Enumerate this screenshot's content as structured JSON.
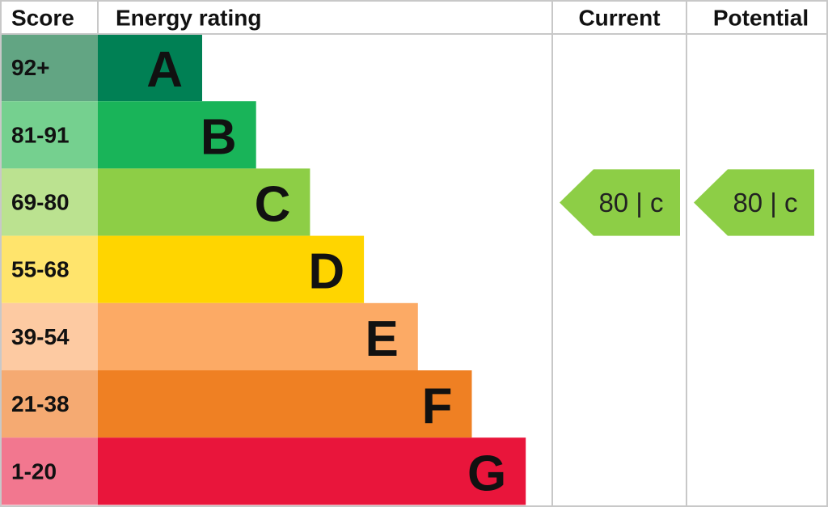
{
  "header": {
    "score": "Score",
    "rating": "Energy rating",
    "current": "Current",
    "potential": "Potential"
  },
  "bands": [
    {
      "score": "92+",
      "letter": "A",
      "color": "#008054",
      "score_color": "#62a583"
    },
    {
      "score": "81-91",
      "letter": "B",
      "color": "#19b459",
      "score_color": "#75d08f"
    },
    {
      "score": "69-80",
      "letter": "C",
      "color": "#8dce46",
      "score_color": "#bbe290"
    },
    {
      "score": "55-68",
      "letter": "D",
      "color": "#ffd500",
      "score_color": "#ffe46c"
    },
    {
      "score": "39-54",
      "letter": "E",
      "color": "#fcaa65",
      "score_color": "#fdcaa2"
    },
    {
      "score": "21-38",
      "letter": "F",
      "color": "#ef8023",
      "score_color": "#f5aa72"
    },
    {
      "score": "1-20",
      "letter": "G",
      "color": "#e9153b",
      "score_color": "#f2778f"
    }
  ],
  "current": {
    "label": "80 |  c",
    "color": "#8dce46"
  },
  "potential": {
    "label": "80 |  c",
    "color": "#8dce46"
  }
}
